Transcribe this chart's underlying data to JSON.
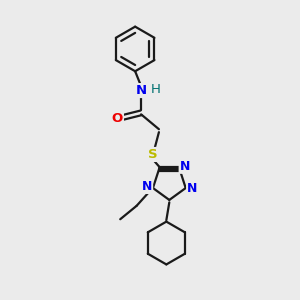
{
  "bg_color": "#ebebeb",
  "bond_color": "#1a1a1a",
  "N_color": "#0000ee",
  "O_color": "#ee0000",
  "S_color": "#bbbb00",
  "H_color": "#007070",
  "line_width": 1.6,
  "figsize": [
    3.0,
    3.0
  ],
  "dpi": 100,
  "xlim": [
    0,
    10
  ],
  "ylim": [
    0,
    10
  ]
}
